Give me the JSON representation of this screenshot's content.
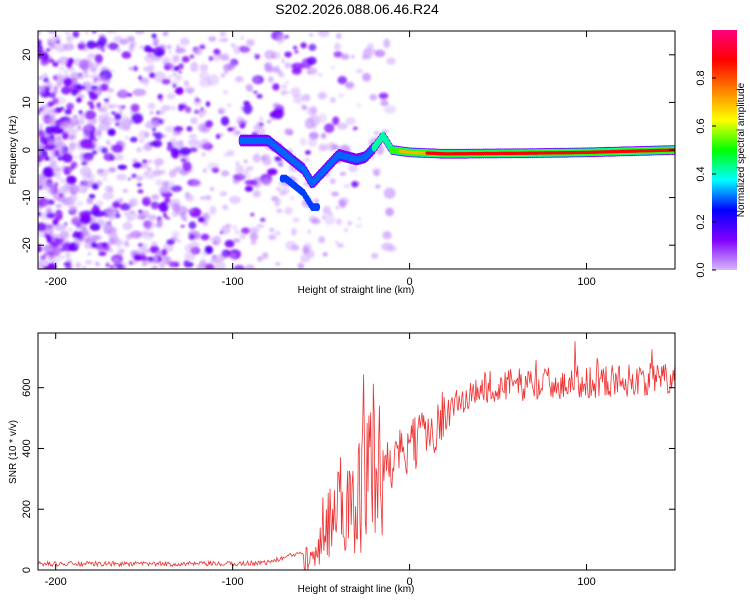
{
  "title": "S202.2026.088.06.46.R24",
  "chart_data": [
    {
      "type": "heatmap",
      "name": "spectrogram",
      "xlabel": "Height of straight line (km)",
      "ylabel": "Frequency (Hz)",
      "xlim": [
        -210,
        150
      ],
      "ylim": [
        -25,
        25
      ],
      "xticks": [
        -200,
        -100,
        0,
        100
      ],
      "yticks": [
        -20,
        -10,
        0,
        10,
        20
      ],
      "colorbar": {
        "label": "Normalized spectral amplitude",
        "range": [
          0,
          1
        ],
        "ticks": [
          "0.0",
          "0.2",
          "0.4",
          "0.6",
          "0.8"
        ],
        "tick_values": [
          0.0,
          0.2,
          0.4,
          0.6,
          0.8
        ],
        "colors": [
          "#d8b8ff",
          "#8000ff",
          "#0000ff",
          "#00ffff",
          "#00ff00",
          "#ffff00",
          "#ff8000",
          "#ff0000",
          "#ff0080"
        ]
      },
      "ridge": [
        [
          -90,
          2
        ],
        [
          -80,
          2
        ],
        [
          -70,
          -1
        ],
        [
          -60,
          -4
        ],
        [
          -55,
          -7
        ],
        [
          -50,
          -5
        ],
        [
          -40,
          -1
        ],
        [
          -30,
          -2
        ],
        [
          -25,
          -1.5
        ],
        [
          -20,
          0.5
        ],
        [
          -15,
          3
        ],
        [
          -10,
          0
        ],
        [
          0,
          -0.5
        ],
        [
          20,
          -0.8
        ],
        [
          60,
          -0.7
        ],
        [
          100,
          -0.5
        ],
        [
          150,
          0
        ]
      ],
      "branch": [
        [
          -70,
          -6
        ],
        [
          -60,
          -9
        ],
        [
          -55,
          -12
        ]
      ]
    },
    {
      "type": "line",
      "name": "snr",
      "xlabel": "Height of straight line (km)",
      "ylabel": "SNR (10 * v/v)",
      "xlim": [
        -210,
        150
      ],
      "ylim": [
        0,
        780
      ],
      "xticks": [
        -200,
        -100,
        0,
        100
      ],
      "yticks": [
        0,
        200,
        400,
        600
      ],
      "color": "#ee3333",
      "series": [
        {
          "name": "SNR",
          "envelope": [
            [
              -210,
              20
            ],
            [
              -100,
              20
            ],
            [
              -80,
              25
            ],
            [
              -60,
              60
            ],
            [
              -50,
              120
            ],
            [
              -40,
              220
            ],
            [
              -30,
              250
            ],
            [
              -20,
              300
            ],
            [
              -10,
              350
            ],
            [
              0,
              400
            ],
            [
              10,
              450
            ],
            [
              20,
              510
            ],
            [
              30,
              560
            ],
            [
              40,
              600
            ],
            [
              60,
              610
            ],
            [
              100,
              620
            ],
            [
              150,
              630
            ]
          ]
        }
      ]
    }
  ]
}
